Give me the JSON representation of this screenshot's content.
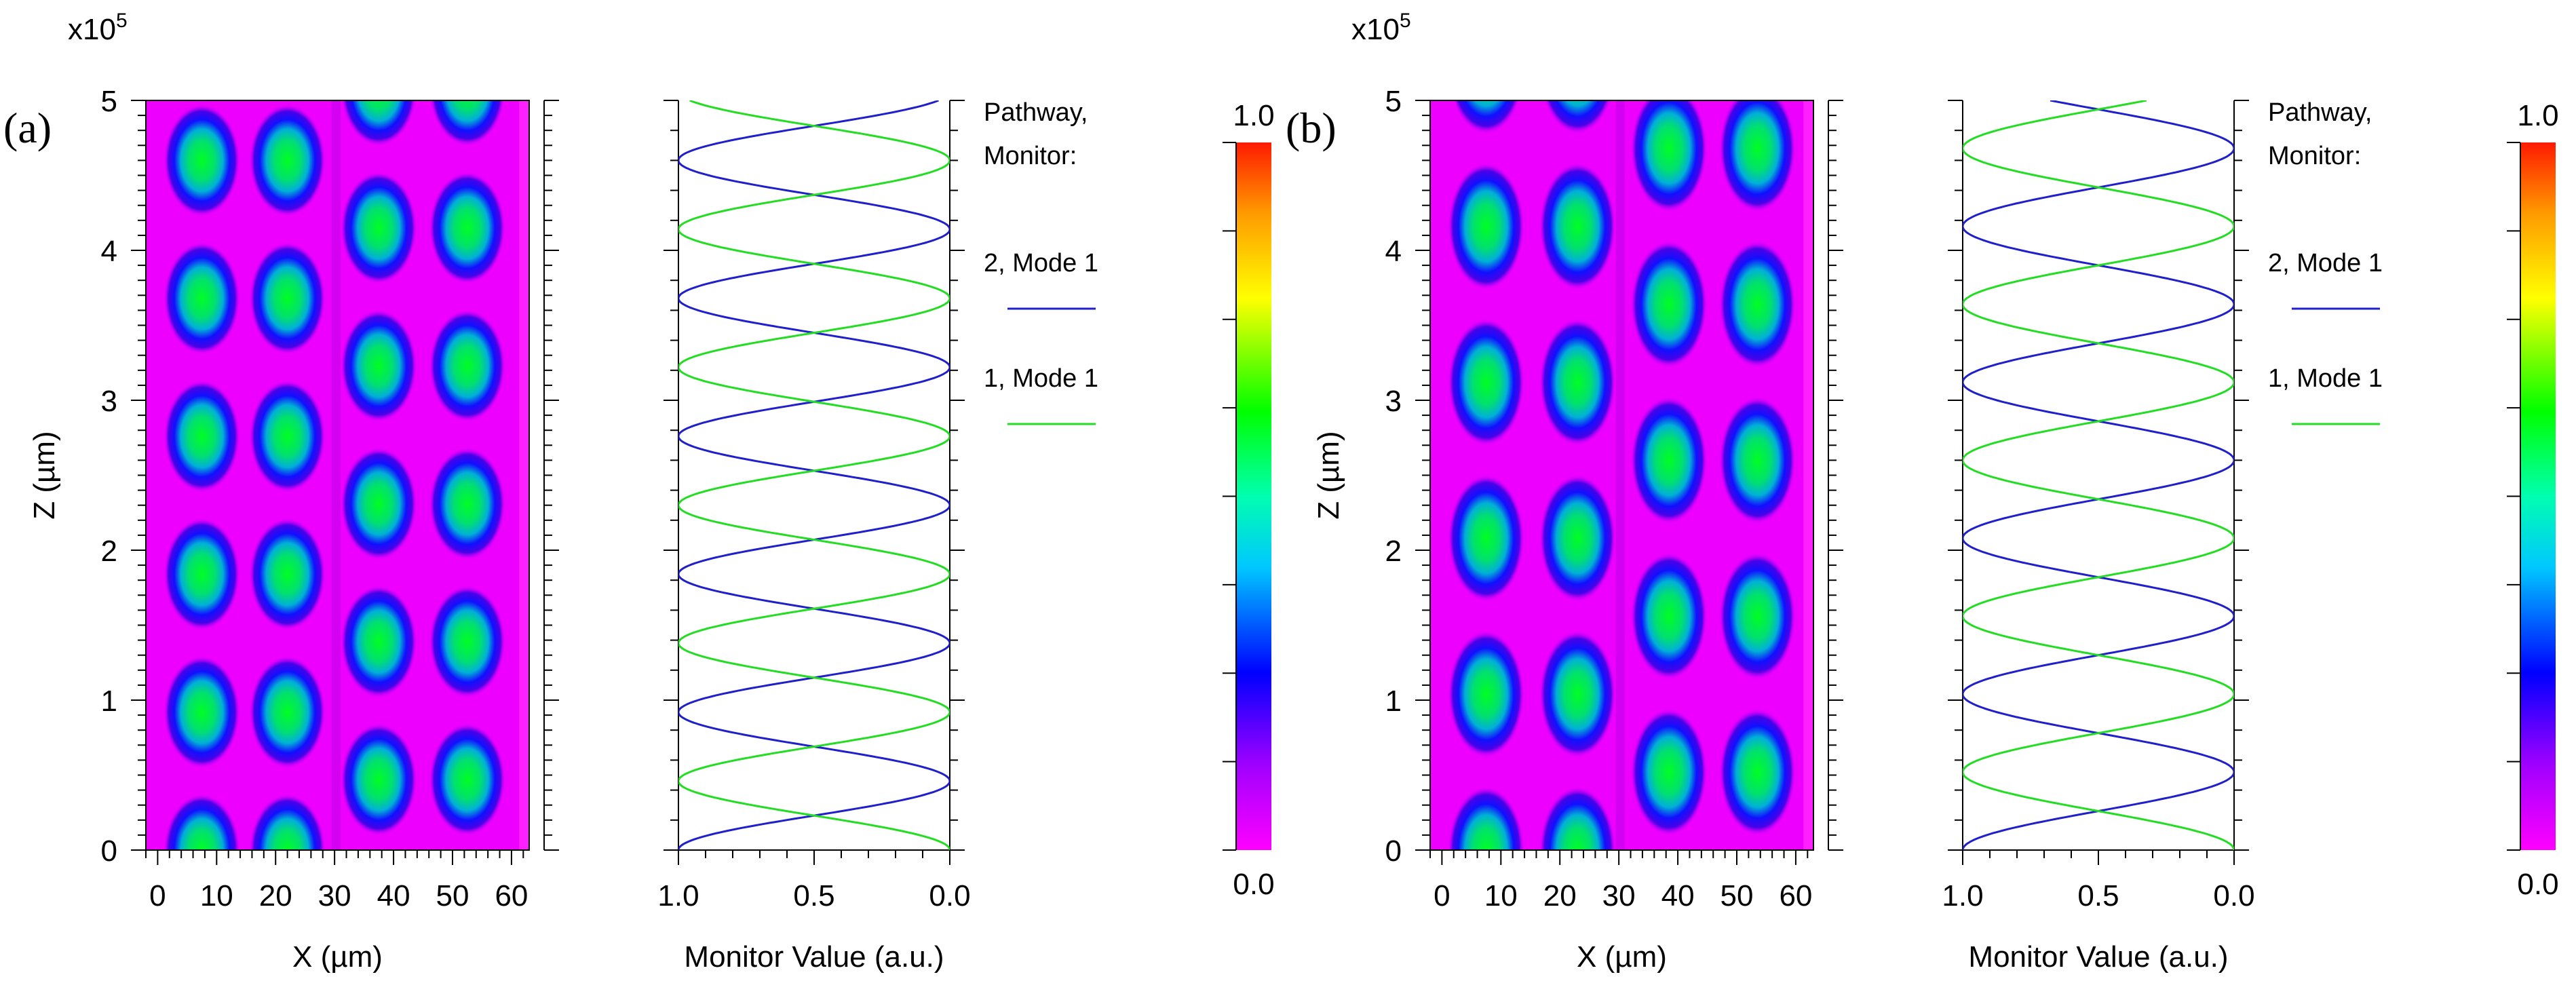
{
  "figure": {
    "panels": [
      {
        "tag": "(a)",
        "scale_label": "x10",
        "scale_exp": "5",
        "field_plot": {
          "xlabel": "X (µm)",
          "ylabel": "Z (µm)",
          "xlim": [
            -2,
            63
          ],
          "ylim": [
            0,
            5
          ],
          "xticks": [
            "0",
            "10",
            "20",
            "30",
            "40",
            "50",
            "60"
          ],
          "yticks": [
            "0",
            "1",
            "2",
            "3",
            "4",
            "5"
          ],
          "colormap": "rainbow (magenta to red)",
          "lobe_columns_x": [
            7.5,
            22,
            37.5,
            52.5
          ],
          "left_guide_z0": 0.0,
          "right_guide_z0": 0.47,
          "beat_length": 0.92
        },
        "monitor_plot": {
          "xlabel": "Monitor Value (a.u.)",
          "xticks": [
            "1.0",
            "0.5",
            "0.0"
          ],
          "xlim": [
            1.0,
            0.0
          ],
          "ylim": [
            0,
            5
          ],
          "legend_title_1": "Pathway,",
          "legend_title_2": "Monitor:",
          "series": [
            {
              "name": "2, Mode 1",
              "color": "#1f1fcc",
              "model": "cos2",
              "period": 0.92,
              "z0": 0.0
            },
            {
              "name": "1, Mode 1",
              "color": "#22dd22",
              "model": "sin2",
              "period": 0.92,
              "z0": 0.0
            }
          ]
        },
        "colorbar": {
          "max_label": "1.0",
          "min_label": "0.0"
        }
      },
      {
        "tag": "(b)",
        "scale_label": "x10",
        "scale_exp": "5",
        "field_plot": {
          "xlabel": "X (µm)",
          "ylabel": "Z (µm)",
          "xlim": [
            -2,
            63
          ],
          "ylim": [
            0,
            5
          ],
          "xticks": [
            "0",
            "10",
            "20",
            "30",
            "40",
            "50",
            "60"
          ],
          "yticks": [
            "0",
            "1",
            "2",
            "3",
            "4",
            "5"
          ],
          "colormap": "rainbow (magenta to red)",
          "lobe_columns_x": [
            7.5,
            23,
            38.5,
            53.5
          ],
          "left_guide_z0": 0.0,
          "right_guide_z0": 0.52,
          "beat_length": 1.04
        },
        "monitor_plot": {
          "xlabel": "Monitor Value (a.u.)",
          "xticks": [
            "1.0",
            "0.5",
            "0.0"
          ],
          "xlim": [
            1.0,
            0.0
          ],
          "ylim": [
            0,
            5
          ],
          "legend_title_1": "Pathway,",
          "legend_title_2": "Monitor:",
          "series": [
            {
              "name": "2, Mode 1",
              "color": "#1f1fcc",
              "model": "cos2",
              "period": 1.04,
              "z0": 0.0
            },
            {
              "name": "1, Mode 1",
              "color": "#22dd22",
              "model": "sin2",
              "period": 1.04,
              "z0": 0.0
            }
          ]
        },
        "colorbar": {
          "max_label": "1.0",
          "min_label": "0.0"
        }
      }
    ]
  },
  "chart_data": [
    {
      "type": "heatmap",
      "panel": "(a)",
      "title": "",
      "xlabel": "X (µm)",
      "ylabel": "Z (µm)",
      "xlim": [
        -2,
        63
      ],
      "ylim": [
        0,
        5
      ],
      "z_scale": "x10^5",
      "value_range": [
        0.0,
        1.0
      ]
    },
    {
      "type": "line",
      "panel": "(a)",
      "xlabel": "Monitor Value (a.u.)",
      "ylabel": "Z (µm)",
      "xlim": [
        1.0,
        0.0
      ],
      "ylim": [
        0,
        5
      ],
      "series": [
        {
          "name": "2, Mode 1",
          "z_at_max": [
            0.0,
            0.92,
            1.84,
            2.76,
            3.68,
            4.6
          ],
          "z_at_min": [
            0.46,
            1.38,
            2.3,
            3.22,
            4.14
          ]
        },
        {
          "name": "1, Mode 1",
          "z_at_max": [
            0.46,
            1.38,
            2.3,
            3.22,
            4.14
          ],
          "z_at_min": [
            0.0,
            0.92,
            1.84,
            2.76,
            3.68,
            4.6
          ]
        }
      ]
    },
    {
      "type": "heatmap",
      "panel": "(b)",
      "title": "",
      "xlabel": "X (µm)",
      "ylabel": "Z (µm)",
      "xlim": [
        -2,
        63
      ],
      "ylim": [
        0,
        5
      ],
      "z_scale": "x10^5",
      "value_range": [
        0.0,
        1.0
      ]
    },
    {
      "type": "line",
      "panel": "(b)",
      "xlabel": "Monitor Value (a.u.)",
      "ylabel": "Z (µm)",
      "xlim": [
        1.0,
        0.0
      ],
      "ylim": [
        0,
        5
      ],
      "series": [
        {
          "name": "2, Mode 1",
          "z_at_max": [
            0.0,
            1.04,
            2.08,
            3.12,
            4.16
          ],
          "z_at_min": [
            0.52,
            1.56,
            2.6,
            3.64,
            4.68
          ]
        },
        {
          "name": "1, Mode 1",
          "z_at_max": [
            0.52,
            1.56,
            2.6,
            3.64,
            4.68
          ],
          "z_at_min": [
            0.0,
            1.04,
            2.08,
            3.12,
            4.16
          ]
        }
      ]
    }
  ]
}
